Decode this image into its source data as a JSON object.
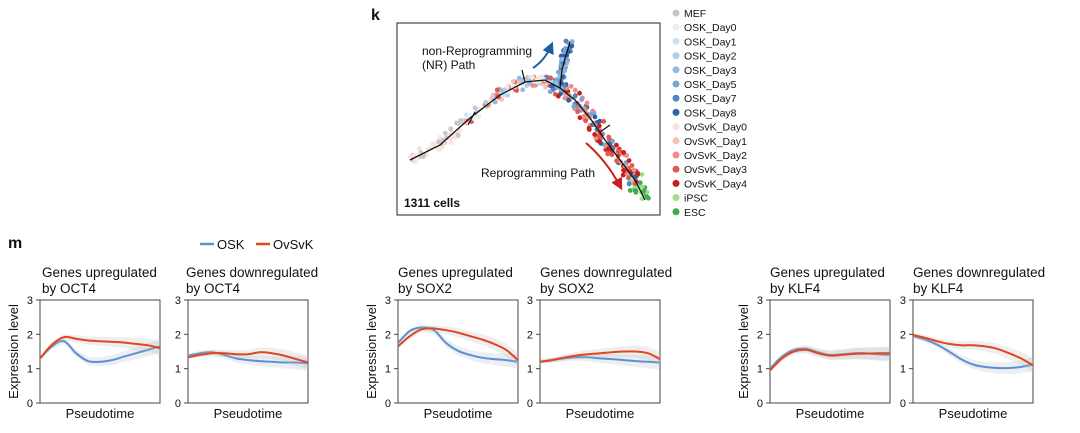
{
  "panels": {
    "k": {
      "letter": "k",
      "cell_count": "1311 cells",
      "arrow_labels": {
        "nr_line1": "non-Reprogramming",
        "nr_line2": "(NR) Path",
        "reprogramming": "Reprogramming Path"
      },
      "legend": [
        {
          "label": "MEF",
          "color": "#c8c8c8"
        },
        {
          "label": "OSK_Day0",
          "color": "#e6eef7"
        },
        {
          "label": "OSK_Day1",
          "color": "#cddff0"
        },
        {
          "label": "OSK_Day2",
          "color": "#b3cde8"
        },
        {
          "label": "OSK_Day3",
          "color": "#96badf"
        },
        {
          "label": "OSK_Day5",
          "color": "#78a5d4"
        },
        {
          "label": "OSK_Day7",
          "color": "#4f86c2"
        },
        {
          "label": "OSK_Day8",
          "color": "#2a63a8"
        },
        {
          "label": "OvSvK_Day0",
          "color": "#f9e3dc"
        },
        {
          "label": "OvSvK_Day1",
          "color": "#f4c2b6"
        },
        {
          "label": "OvSvK_Day2",
          "color": "#ea8f82"
        },
        {
          "label": "OvSvK_Day3",
          "color": "#df5a51"
        },
        {
          "label": "OvSvK_Day4",
          "color": "#c81e1e"
        },
        {
          "label": "iPSC",
          "color": "#a6dc8f"
        },
        {
          "label": "ESC",
          "color": "#3cae48"
        }
      ]
    },
    "m": {
      "letter": "m",
      "legend": [
        {
          "label": "OSK",
          "color": "#5b8fd6"
        },
        {
          "label": "OvSvK",
          "color": "#e2461c"
        }
      ]
    }
  },
  "chart_data": [
    {
      "type": "line",
      "title_line1": "Genes upregulated",
      "title_line2": "by OCT4",
      "xlabel": "Pseudotime",
      "ylabel": "Expression level",
      "ylim": [
        0,
        3
      ],
      "yticks": [
        "0",
        "1",
        "2",
        "3"
      ],
      "x": [
        0,
        0.1,
        0.2,
        0.3,
        0.4,
        0.5,
        0.6,
        0.7,
        0.8,
        0.9,
        1.0
      ],
      "series": [
        {
          "name": "OSK",
          "values": [
            1.3,
            1.65,
            1.8,
            1.45,
            1.22,
            1.2,
            1.25,
            1.35,
            1.45,
            1.55,
            1.65
          ]
        },
        {
          "name": "OvSvK",
          "values": [
            1.3,
            1.7,
            1.92,
            1.87,
            1.82,
            1.8,
            1.78,
            1.76,
            1.72,
            1.68,
            1.6
          ]
        }
      ]
    },
    {
      "type": "line",
      "title_line1": "Genes downregulated",
      "title_line2": "by OCT4",
      "xlabel": "Pseudotime",
      "ylabel": "",
      "ylim": [
        0,
        3
      ],
      "yticks": [
        "0",
        "1",
        "2",
        "3"
      ],
      "x": [
        0,
        0.1,
        0.2,
        0.3,
        0.4,
        0.5,
        0.6,
        0.7,
        0.8,
        0.9,
        1.0
      ],
      "series": [
        {
          "name": "OSK",
          "values": [
            1.38,
            1.45,
            1.48,
            1.4,
            1.3,
            1.25,
            1.22,
            1.2,
            1.18,
            1.18,
            1.15
          ]
        },
        {
          "name": "OvSvK",
          "values": [
            1.33,
            1.4,
            1.45,
            1.45,
            1.42,
            1.42,
            1.48,
            1.45,
            1.38,
            1.28,
            1.18
          ]
        }
      ]
    },
    {
      "type": "line",
      "title_line1": "Genes upregulated",
      "title_line2": "by SOX2",
      "xlabel": "Pseudotime",
      "ylabel": "Expression level",
      "ylim": [
        0,
        3
      ],
      "yticks": [
        "0",
        "1",
        "2",
        "3"
      ],
      "x": [
        0,
        0.1,
        0.2,
        0.3,
        0.4,
        0.5,
        0.6,
        0.7,
        0.8,
        0.9,
        1.0
      ],
      "series": [
        {
          "name": "OSK",
          "values": [
            1.75,
            2.1,
            2.2,
            2.12,
            1.75,
            1.52,
            1.4,
            1.32,
            1.28,
            1.25,
            1.2
          ]
        },
        {
          "name": "OvSvK",
          "values": [
            1.65,
            1.95,
            2.15,
            2.17,
            2.12,
            2.05,
            1.95,
            1.85,
            1.72,
            1.55,
            1.25
          ]
        }
      ]
    },
    {
      "type": "line",
      "title_line1": "Genes downregulated",
      "title_line2": "by SOX2",
      "xlabel": "Pseudotime",
      "ylabel": "",
      "ylim": [
        0,
        3
      ],
      "yticks": [
        "0",
        "1",
        "2",
        "3"
      ],
      "x": [
        0,
        0.1,
        0.2,
        0.3,
        0.4,
        0.5,
        0.6,
        0.7,
        0.8,
        0.9,
        1.0
      ],
      "series": [
        {
          "name": "OSK",
          "values": [
            1.2,
            1.25,
            1.3,
            1.33,
            1.33,
            1.3,
            1.28,
            1.25,
            1.22,
            1.2,
            1.18
          ]
        },
        {
          "name": "OvSvK",
          "values": [
            1.2,
            1.25,
            1.32,
            1.38,
            1.42,
            1.45,
            1.48,
            1.5,
            1.5,
            1.45,
            1.28
          ]
        }
      ]
    },
    {
      "type": "line",
      "title_line1": "Genes upregulated",
      "title_line2": "by KLF4",
      "xlabel": "Pseudotime",
      "ylabel": "Expression level",
      "ylim": [
        0,
        3
      ],
      "yticks": [
        "0",
        "1",
        "2",
        "3"
      ],
      "x": [
        0,
        0.1,
        0.2,
        0.3,
        0.4,
        0.5,
        0.6,
        0.7,
        0.8,
        0.9,
        1.0
      ],
      "series": [
        {
          "name": "OSK",
          "values": [
            1.0,
            1.35,
            1.55,
            1.58,
            1.48,
            1.4,
            1.42,
            1.45,
            1.45,
            1.42,
            1.4
          ]
        },
        {
          "name": "OvSvK",
          "values": [
            0.95,
            1.3,
            1.5,
            1.55,
            1.45,
            1.38,
            1.4,
            1.43,
            1.44,
            1.45,
            1.45
          ]
        }
      ]
    },
    {
      "type": "line",
      "title_line1": "Genes downregulated",
      "title_line2": "by KLF4",
      "xlabel": "Pseudotime",
      "ylabel": "",
      "ylim": [
        0,
        3
      ],
      "yticks": [
        "0",
        "1",
        "2",
        "3"
      ],
      "x": [
        0,
        0.1,
        0.2,
        0.3,
        0.4,
        0.5,
        0.6,
        0.7,
        0.8,
        0.9,
        1.0
      ],
      "series": [
        {
          "name": "OSK",
          "values": [
            1.95,
            1.85,
            1.7,
            1.5,
            1.28,
            1.12,
            1.05,
            1.02,
            1.02,
            1.05,
            1.12
          ]
        },
        {
          "name": "OvSvK",
          "values": [
            1.98,
            1.9,
            1.8,
            1.72,
            1.68,
            1.68,
            1.65,
            1.58,
            1.45,
            1.3,
            1.1
          ]
        }
      ]
    }
  ]
}
